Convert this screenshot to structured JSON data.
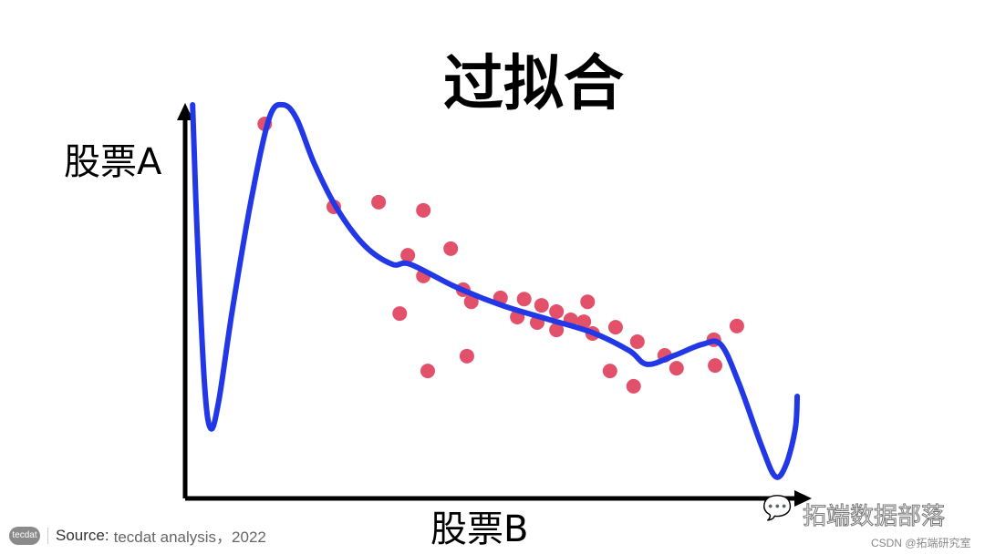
{
  "title": "过拟合",
  "footer": {
    "logo_text": "tecdat",
    "source_label": "Source:",
    "source_text": "tecdat analysis，2022"
  },
  "watermark": {
    "icon": "wechat-icon",
    "text": "拓端数据部落",
    "csdn": "CSDN @拓端研究室"
  },
  "colors": {
    "curve": "#2237e6",
    "points": "#e2506a",
    "axes": "#000000"
  },
  "chart_data": {
    "type": "scatter",
    "title": "过拟合",
    "xlabel": "股票B",
    "ylabel": "股票A",
    "xlim": [
      0,
      100
    ],
    "ylim": [
      0,
      100
    ],
    "grid": false,
    "ticks": false,
    "points": [
      [
        12.8,
        95.8
      ],
      [
        23.9,
        74.6
      ],
      [
        31.1,
        75.8
      ],
      [
        38.3,
        73.7
      ],
      [
        35.8,
        62.2
      ],
      [
        42.7,
        63.9
      ],
      [
        38.3,
        56.9
      ],
      [
        34.5,
        47.3
      ],
      [
        44.7,
        53.4
      ],
      [
        46.0,
        50.3
      ],
      [
        50.7,
        51.3
      ],
      [
        54.5,
        51.0
      ],
      [
        53.4,
        46.4
      ],
      [
        57.3,
        49.4
      ],
      [
        56.6,
        45.0
      ],
      [
        59.7,
        47.8
      ],
      [
        59.7,
        43.1
      ],
      [
        62.0,
        45.7
      ],
      [
        64.1,
        45.2
      ],
      [
        64.7,
        50.3
      ],
      [
        65.5,
        42.2
      ],
      [
        69.2,
        43.8
      ],
      [
        72.7,
        40.1
      ],
      [
        68.3,
        32.6
      ],
      [
        72.1,
        28.7
      ],
      [
        77.1,
        36.6
      ],
      [
        79.0,
        33.3
      ],
      [
        85.0,
        40.6
      ],
      [
        85.2,
        34.0
      ],
      [
        88.7,
        44.1
      ],
      [
        39.0,
        32.6
      ],
      [
        45.3,
        36.4
      ]
    ],
    "fit_curve": [
      [
        1.2,
        100.7
      ],
      [
        1.9,
        69.2
      ],
      [
        3.1,
        29.6
      ],
      [
        4.1,
        17.9
      ],
      [
        5.4,
        24.9
      ],
      [
        7.6,
        48.3
      ],
      [
        10.6,
        76.2
      ],
      [
        13.5,
        97.2
      ],
      [
        15.7,
        100.7
      ],
      [
        17.9,
        97.2
      ],
      [
        20.8,
        85.5
      ],
      [
        24.5,
        73.9
      ],
      [
        28.9,
        64.6
      ],
      [
        33.3,
        59.9
      ],
      [
        36.2,
        59.9
      ],
      [
        43.5,
        54.1
      ],
      [
        50.9,
        49.4
      ],
      [
        58.2,
        45.9
      ],
      [
        65.5,
        42.4
      ],
      [
        71.4,
        37.8
      ],
      [
        74.3,
        34.3
      ],
      [
        78.7,
        36.6
      ],
      [
        83.1,
        39.4
      ],
      [
        86.1,
        39.4
      ],
      [
        89.0,
        29.6
      ],
      [
        92.7,
        13.3
      ],
      [
        94.9,
        5.6
      ],
      [
        96.6,
        8.6
      ],
      [
        98.1,
        17.9
      ],
      [
        98.4,
        26.1
      ]
    ]
  }
}
